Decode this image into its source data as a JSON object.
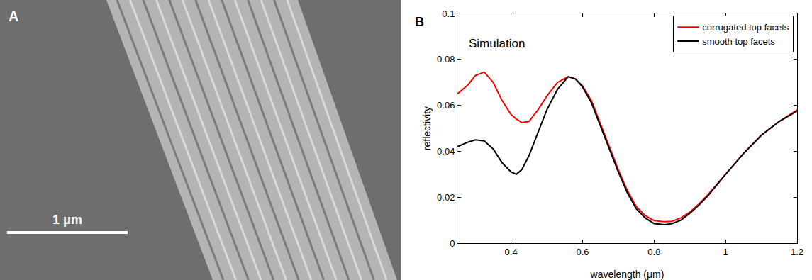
{
  "panel_a": {
    "label": "A",
    "scale_bar_label": "1 μm"
  },
  "chart_data": {
    "type": "line",
    "panel_label": "B",
    "annotations": [
      {
        "text": "Simulation",
        "x": 0.36,
        "y": 0.087
      }
    ],
    "x_label": "wavelength (μm)",
    "y_label": "reflectivity",
    "x": [
      0.25,
      0.28,
      0.3,
      0.325,
      0.35,
      0.375,
      0.4,
      0.415,
      0.43,
      0.45,
      0.475,
      0.5,
      0.53,
      0.56,
      0.58,
      0.6,
      0.625,
      0.65,
      0.675,
      0.7,
      0.725,
      0.75,
      0.775,
      0.8,
      0.83,
      0.85,
      0.875,
      0.9,
      0.925,
      0.95,
      1.0,
      1.05,
      1.1,
      1.15,
      1.2
    ],
    "series": [
      {
        "name": "corrugated top facets",
        "color": "#ff0000",
        "values": [
          0.065,
          0.069,
          0.073,
          0.0745,
          0.07,
          0.062,
          0.056,
          0.054,
          0.0525,
          0.053,
          0.058,
          0.064,
          0.07,
          0.0725,
          0.0715,
          0.0685,
          0.062,
          0.052,
          0.042,
          0.032,
          0.023,
          0.016,
          0.012,
          0.0098,
          0.0093,
          0.0095,
          0.011,
          0.0135,
          0.017,
          0.021,
          0.03,
          0.039,
          0.047,
          0.053,
          0.058
        ]
      },
      {
        "name": "smooth top facets",
        "color": "#000000",
        "values": [
          0.042,
          0.044,
          0.045,
          0.0445,
          0.041,
          0.035,
          0.031,
          0.03,
          0.032,
          0.038,
          0.048,
          0.058,
          0.067,
          0.0725,
          0.0715,
          0.068,
          0.061,
          0.051,
          0.041,
          0.031,
          0.022,
          0.015,
          0.011,
          0.0085,
          0.008,
          0.0085,
          0.01,
          0.013,
          0.0165,
          0.0205,
          0.03,
          0.039,
          0.047,
          0.053,
          0.0575
        ]
      }
    ],
    "xlim": [
      0.25,
      1.2
    ],
    "xticks": [
      0.4,
      0.6,
      0.8,
      1,
      1.2
    ],
    "ylim": [
      0,
      0.1
    ],
    "yticks": [
      0,
      0.02,
      0.04,
      0.06,
      0.08,
      0.1
    ],
    "grid": false,
    "legend": "upper right"
  }
}
